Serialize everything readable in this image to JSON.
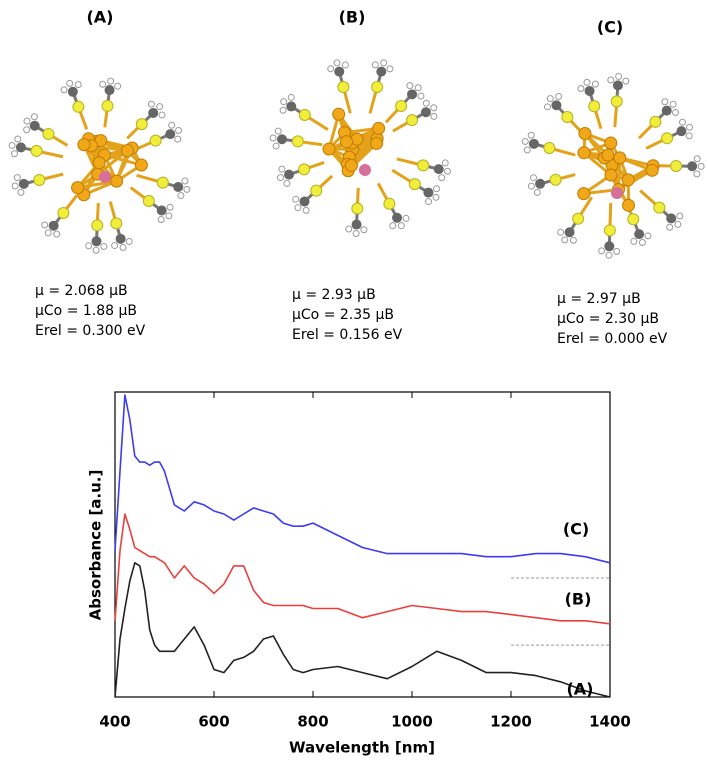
{
  "structures": [
    {
      "label": "(A)",
      "lines": [
        "μ  = 2.068 μB",
        "μCo = 1.88 μB",
        "Erel = 0.300 eV"
      ]
    },
    {
      "label": "(B)",
      "lines": [
        "μ  = 2.93 μB",
        "μCo = 2.35 μB",
        "Erel = 0.156 eV"
      ]
    },
    {
      "label": "(C)",
      "lines": [
        "μ  = 2.97 μB",
        "μCo = 2.30 μB",
        "Erel = 0.000 eV"
      ]
    }
  ],
  "chart_data": {
    "type": "line",
    "xlabel": "Wavelength [nm]",
    "ylabel": "Absorbance [a.u.]",
    "x": [
      400,
      410,
      420,
      430,
      440,
      450,
      460,
      470,
      480,
      490,
      500,
      520,
      540,
      560,
      580,
      600,
      620,
      640,
      660,
      680,
      700,
      720,
      740,
      760,
      780,
      800,
      850,
      900,
      950,
      1000,
      1050,
      1100,
      1150,
      1200,
      1250,
      1300,
      1350,
      1400
    ],
    "series": [
      {
        "name": "(A)",
        "color": "#222222",
        "values": [
          0,
          0.19,
          0.29,
          0.38,
          0.44,
          0.43,
          0.35,
          0.22,
          0.17,
          0.15,
          0.15,
          0.15,
          0.19,
          0.23,
          0.17,
          0.09,
          0.08,
          0.12,
          0.13,
          0.15,
          0.19,
          0.2,
          0.14,
          0.09,
          0.08,
          0.09,
          0.1,
          0.08,
          0.06,
          0.1,
          0.15,
          0.12,
          0.08,
          0.08,
          0.07,
          0.05,
          0.02,
          0
        ]
      },
      {
        "name": "(B)",
        "color": "#e8403c",
        "values": [
          0.25,
          0.48,
          0.6,
          0.55,
          0.49,
          0.48,
          0.47,
          0.46,
          0.46,
          0.45,
          0.44,
          0.39,
          0.43,
          0.39,
          0.37,
          0.34,
          0.37,
          0.43,
          0.43,
          0.35,
          0.31,
          0.3,
          0.3,
          0.3,
          0.3,
          0.29,
          0.29,
          0.26,
          0.28,
          0.3,
          0.29,
          0.28,
          0.28,
          0.27,
          0.26,
          0.25,
          0.25,
          0.24
        ]
      },
      {
        "name": "(C)",
        "color": "#3c3cf0",
        "values": [
          0.48,
          0.74,
          0.99,
          0.91,
          0.79,
          0.77,
          0.77,
          0.76,
          0.77,
          0.77,
          0.74,
          0.63,
          0.61,
          0.64,
          0.63,
          0.61,
          0.6,
          0.58,
          0.6,
          0.62,
          0.61,
          0.6,
          0.57,
          0.56,
          0.56,
          0.57,
          0.53,
          0.49,
          0.47,
          0.47,
          0.47,
          0.47,
          0.46,
          0.46,
          0.47,
          0.47,
          0.46,
          0.44
        ]
      }
    ],
    "reference_lines": [
      {
        "x": [
          1200,
          1400
        ],
        "y": 0.39
      },
      {
        "x": [
          1200,
          1400
        ],
        "y": 0.17
      }
    ],
    "xlim": [
      400,
      1400
    ],
    "xticks": [
      400,
      600,
      800,
      1000,
      1200,
      1400
    ],
    "ylim": [
      0,
      1
    ]
  }
}
